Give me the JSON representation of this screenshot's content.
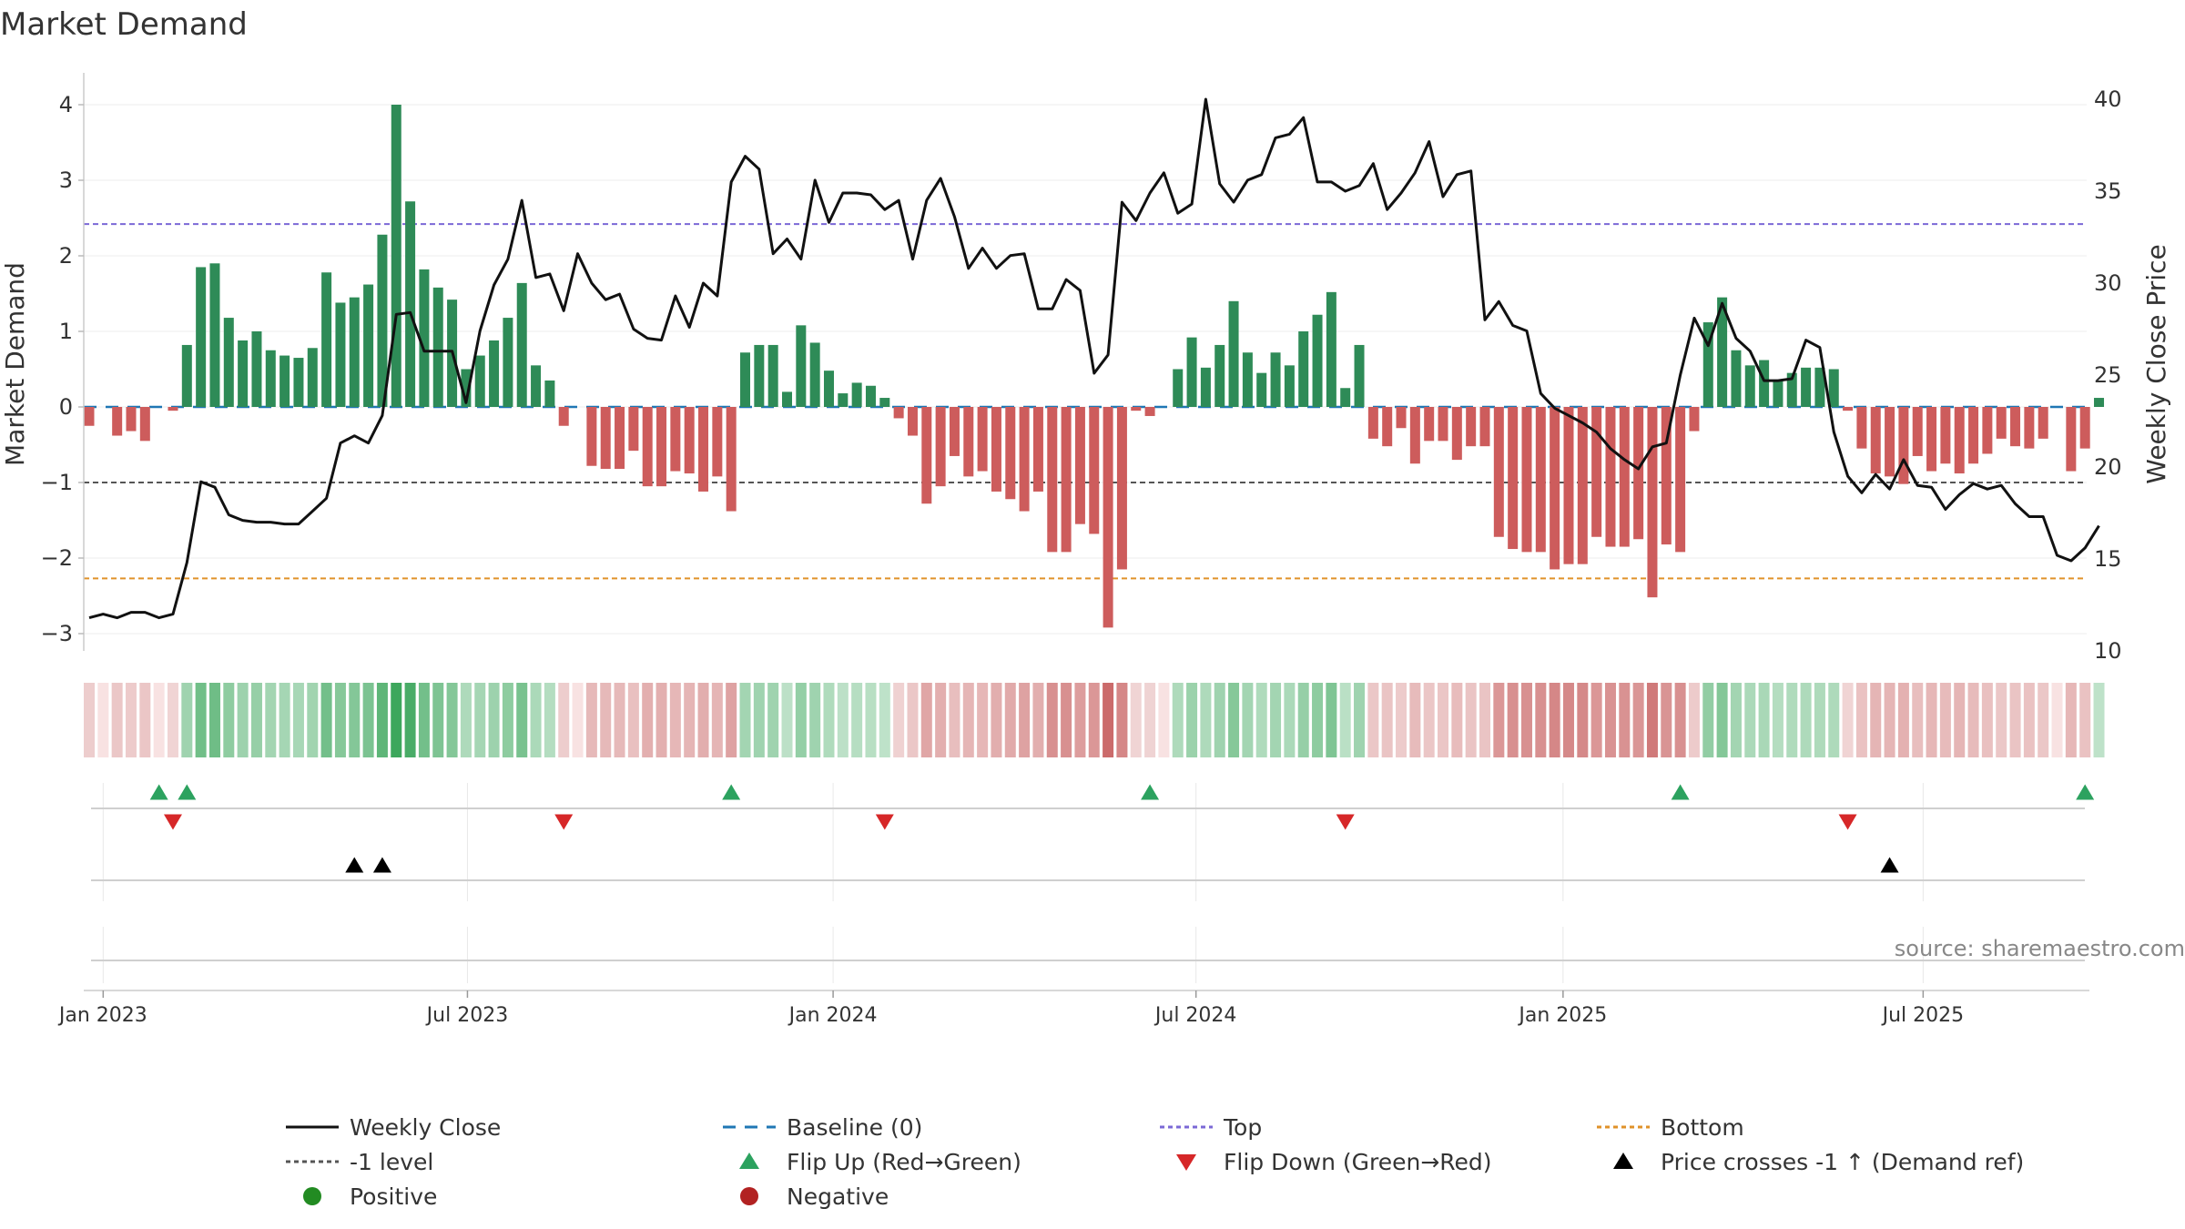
{
  "chart_data": {
    "type": "bar",
    "title": "Market Demand",
    "ylabel_left": "Market Demand",
    "ylabel_right": "Weekly Close Price",
    "source": "source: sharemaestro.com",
    "x_start_week": 0,
    "week_count": 144,
    "ylim_left": [
      -3.3,
      4.2
    ],
    "yticks_left": [
      "4",
      "3",
      "2",
      "1",
      "0",
      "−1",
      "−2",
      "−3"
    ],
    "ylim_right": [
      9.8,
      40.8
    ],
    "yticks_right": [
      "40",
      "35",
      "30",
      "25",
      "20",
      "15",
      "10"
    ],
    "xtick_labels": [
      "Jan 2023",
      "Jul 2023",
      "Jan 2024",
      "Jul 2024",
      "Jan 2025",
      "Jul 2025"
    ],
    "xtick_weeks": [
      1.0,
      27.1,
      53.3,
      79.3,
      105.6,
      131.4
    ],
    "reference_lines": {
      "top": 2.42,
      "bottom": -2.27,
      "minus_one": -1,
      "baseline": 0
    },
    "demand": [
      -0.25,
      0,
      -0.38,
      -0.32,
      -0.45,
      0,
      -0.05,
      0.82,
      1.85,
      1.9,
      1.18,
      0.88,
      1.0,
      0.75,
      0.68,
      0.65,
      0.78,
      1.78,
      1.38,
      1.45,
      1.62,
      2.28,
      4.0,
      2.72,
      1.82,
      1.58,
      1.42,
      0.5,
      0.68,
      0.88,
      1.18,
      1.64,
      0.55,
      0.35,
      -0.25,
      0,
      -0.78,
      -0.82,
      -0.82,
      -0.58,
      -1.05,
      -1.05,
      -0.85,
      -0.88,
      -1.12,
      -0.92,
      -1.38,
      0.72,
      0.82,
      0.82,
      0.2,
      1.08,
      0.85,
      0.48,
      0.18,
      0.32,
      0.28,
      0.12,
      -0.15,
      -0.38,
      -1.28,
      -1.05,
      -0.65,
      -0.92,
      -0.85,
      -1.12,
      -1.22,
      -1.38,
      -1.12,
      -1.92,
      -1.92,
      -1.55,
      -1.68,
      -2.92,
      -2.15,
      -0.05,
      -0.12,
      0,
      0.5,
      0.92,
      0.52,
      0.82,
      1.4,
      0.72,
      0.45,
      0.72,
      0.55,
      1.0,
      1.22,
      1.52,
      0.25,
      0.82,
      -0.42,
      -0.52,
      -0.28,
      -0.75,
      -0.45,
      -0.45,
      -0.7,
      -0.52,
      -0.52,
      -1.72,
      -1.88,
      -1.92,
      -1.92,
      -2.15,
      -2.08,
      -2.08,
      -1.72,
      -1.85,
      -1.85,
      -1.75,
      -2.52,
      -1.82,
      -1.92,
      -0.32,
      1.12,
      1.45,
      0.75,
      0.55,
      0.62,
      0.35,
      0.45,
      0.52,
      0.52,
      0.5,
      -0.05,
      -0.55,
      -0.88,
      -0.92,
      -1.02,
      -0.65,
      -0.85,
      -0.75,
      -0.88,
      -0.75,
      -0.62,
      -0.42,
      -0.52,
      -0.55,
      -0.42,
      0,
      -0.85,
      -0.55,
      0.12
    ],
    "close": [
      11.8,
      12.0,
      11.8,
      12.1,
      12.1,
      11.8,
      12.0,
      14.8,
      19.2,
      18.9,
      17.4,
      17.1,
      17.0,
      17.0,
      16.9,
      16.9,
      17.6,
      18.3,
      21.3,
      21.7,
      21.3,
      22.8,
      28.3,
      28.4,
      26.3,
      26.3,
      26.3,
      23.5,
      27.4,
      29.9,
      31.3,
      34.5,
      30.3,
      30.5,
      28.5,
      31.6,
      30.0,
      29.1,
      29.4,
      27.5,
      27.0,
      26.9,
      29.3,
      27.6,
      30.0,
      29.3,
      35.5,
      36.9,
      36.2,
      31.6,
      32.4,
      31.3,
      35.6,
      33.3,
      34.9,
      34.9,
      34.8,
      34.0,
      34.5,
      31.3,
      34.5,
      35.7,
      33.6,
      30.8,
      31.9,
      30.8,
      31.5,
      31.6,
      28.6,
      28.6,
      30.2,
      29.6,
      25.1,
      26.1,
      34.4,
      33.4,
      34.9,
      36.0,
      33.8,
      34.3,
      40.0,
      35.4,
      34.4,
      35.6,
      35.9,
      37.9,
      38.1,
      39.0,
      35.5,
      35.5,
      35.0,
      35.3,
      36.5,
      34.0,
      34.9,
      36.0,
      37.7,
      34.7,
      35.9,
      36.1,
      28.0,
      29.0,
      27.7,
      27.4,
      24.0,
      23.2,
      22.8,
      22.4,
      21.9,
      21.0,
      20.4,
      19.9,
      21.1,
      21.3,
      25.0,
      28.1,
      26.6,
      28.9,
      27.0,
      26.3,
      24.7,
      24.7,
      24.8,
      26.9,
      26.5,
      21.9,
      19.5,
      18.6,
      19.6,
      18.8,
      20.4,
      19.0,
      18.9,
      17.7,
      18.5,
      19.1,
      18.8,
      19.0,
      18.0,
      17.3,
      17.3,
      15.2,
      14.9,
      15.6,
      16.8
    ],
    "flip_up_weeks": [
      5,
      7,
      46,
      76,
      114,
      143
    ],
    "flip_down_weeks": [
      6,
      34,
      57,
      90,
      126
    ],
    "price_cross_weeks": [
      19,
      21,
      129
    ],
    "legend": [
      {
        "label": "Weekly Close",
        "symbol": "solid-line",
        "color": "#111111"
      },
      {
        "label": "Baseline (0)",
        "symbol": "dashed-line",
        "color": "#1f77b4"
      },
      {
        "label": "Top",
        "symbol": "dotted-line",
        "color": "#7b68d6"
      },
      {
        "label": "Bottom",
        "symbol": "dotted-line",
        "color": "#e0922a"
      },
      {
        "label": "-1 level",
        "symbol": "dotted-line",
        "color": "#555555"
      },
      {
        "label": "Flip Up (Red→Green)",
        "symbol": "triangle-up",
        "color": "#2ca25f"
      },
      {
        "label": "Flip Down (Green→Red)",
        "symbol": "triangle-down",
        "color": "#d62728"
      },
      {
        "label": "Price crosses -1 ↑ (Demand ref)",
        "symbol": "triangle-up",
        "color": "#000000"
      },
      {
        "label": "Positive",
        "symbol": "circle",
        "color": "#228b22"
      },
      {
        "label": "Negative",
        "symbol": "circle",
        "color": "#b22222"
      }
    ],
    "colors": {
      "positive_bar": "#2e8b57",
      "negative_bar": "#cd5c5c",
      "close_line": "#111111",
      "baseline": "#1f77b4",
      "top": "#7b68d6",
      "bottom": "#e0922a",
      "minus_one": "#555555",
      "flip_up": "#2ca25f",
      "flip_down": "#d62728",
      "cross": "#000000"
    }
  }
}
